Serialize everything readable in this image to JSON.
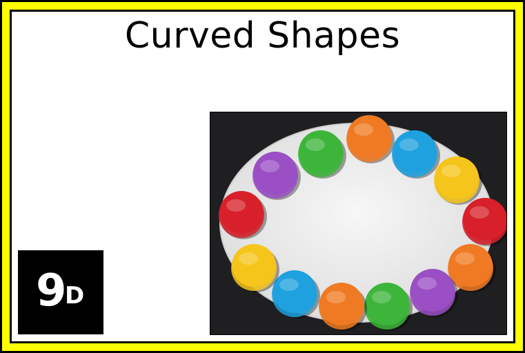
{
  "card": {
    "title": "Curved Shapes",
    "badge": {
      "number": "9",
      "letter": "D"
    }
  },
  "photo": {
    "subject": "Colored playdough discs arranged around a white oval plate",
    "colors": {
      "background": "#1f1f22",
      "plate": "#eeeeee",
      "green": "#3db53a",
      "orange": "#f07a23",
      "blue": "#1ea1de",
      "yellow": "#f6c51b",
      "red": "#d8202a",
      "purple": "#9a4fc4"
    }
  }
}
